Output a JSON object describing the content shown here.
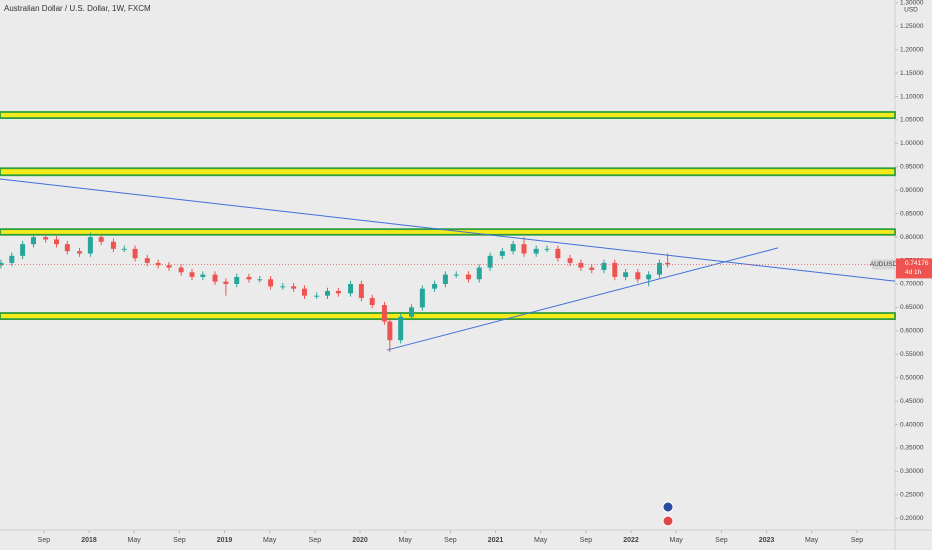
{
  "chart_data": {
    "type": "candlestick",
    "title": "Australian Dollar / U.S. Dollar, 1W, FXCM",
    "currency": "USD",
    "symbol": "AUDUSD",
    "last_price": 0.74176,
    "countdown": "4d 1h",
    "up_color": "#26a69a",
    "down_color": "#ef5350",
    "x": [
      2017.35,
      2017.43,
      2017.51,
      2017.59,
      2017.68,
      2017.76,
      2017.84,
      2017.93,
      2018.01,
      2018.09,
      2018.18,
      2018.26,
      2018.34,
      2018.43,
      2018.51,
      2018.59,
      2018.68,
      2018.76,
      2018.84,
      2018.93,
      2019.01,
      2019.09,
      2019.18,
      2019.26,
      2019.34,
      2019.43,
      2019.51,
      2019.59,
      2019.68,
      2019.76,
      2019.84,
      2019.93,
      2020.01,
      2020.09,
      2020.18,
      2020.22,
      2020.3,
      2020.38,
      2020.46,
      2020.55,
      2020.63,
      2020.71,
      2020.8,
      2020.88,
      2020.96,
      2021.05,
      2021.13,
      2021.21,
      2021.3,
      2021.38,
      2021.46,
      2021.55,
      2021.63,
      2021.71,
      2021.8,
      2021.88,
      2021.96,
      2022.05,
      2022.13,
      2022.21,
      2022.27
    ],
    "open": [
      0.74,
      0.745,
      0.76,
      0.785,
      0.8,
      0.795,
      0.785,
      0.77,
      0.765,
      0.8,
      0.79,
      0.775,
      0.775,
      0.755,
      0.745,
      0.74,
      0.735,
      0.725,
      0.715,
      0.72,
      0.705,
      0.7,
      0.715,
      0.71,
      0.71,
      0.695,
      0.695,
      0.69,
      0.675,
      0.675,
      0.685,
      0.68,
      0.7,
      0.67,
      0.655,
      0.62,
      0.58,
      0.63,
      0.65,
      0.69,
      0.7,
      0.72,
      0.72,
      0.71,
      0.735,
      0.76,
      0.77,
      0.785,
      0.765,
      0.775,
      0.775,
      0.755,
      0.745,
      0.735,
      0.73,
      0.745,
      0.715,
      0.725,
      0.71,
      0.72,
      0.745
    ],
    "high": [
      0.752,
      0.767,
      0.792,
      0.807,
      0.807,
      0.802,
      0.792,
      0.777,
      0.81,
      0.807,
      0.797,
      0.782,
      0.782,
      0.762,
      0.752,
      0.747,
      0.742,
      0.732,
      0.727,
      0.727,
      0.712,
      0.722,
      0.722,
      0.717,
      0.717,
      0.702,
      0.702,
      0.697,
      0.682,
      0.692,
      0.692,
      0.707,
      0.707,
      0.677,
      0.662,
      0.627,
      0.637,
      0.657,
      0.697,
      0.707,
      0.727,
      0.727,
      0.727,
      0.742,
      0.767,
      0.777,
      0.792,
      0.8,
      0.782,
      0.782,
      0.782,
      0.762,
      0.752,
      0.742,
      0.752,
      0.752,
      0.732,
      0.732,
      0.727,
      0.752,
      0.765
    ],
    "low": [
      0.733,
      0.738,
      0.753,
      0.778,
      0.788,
      0.778,
      0.763,
      0.758,
      0.758,
      0.783,
      0.768,
      0.768,
      0.748,
      0.738,
      0.733,
      0.728,
      0.718,
      0.708,
      0.708,
      0.698,
      0.675,
      0.693,
      0.703,
      0.703,
      0.688,
      0.688,
      0.683,
      0.668,
      0.668,
      0.668,
      0.673,
      0.673,
      0.663,
      0.648,
      0.613,
      0.555,
      0.573,
      0.623,
      0.643,
      0.683,
      0.693,
      0.713,
      0.703,
      0.703,
      0.728,
      0.753,
      0.763,
      0.758,
      0.758,
      0.768,
      0.748,
      0.738,
      0.728,
      0.723,
      0.723,
      0.708,
      0.708,
      0.703,
      0.695,
      0.713,
      0.735
    ],
    "close": [
      0.745,
      0.76,
      0.785,
      0.8,
      0.795,
      0.785,
      0.77,
      0.765,
      0.8,
      0.79,
      0.775,
      0.775,
      0.755,
      0.745,
      0.74,
      0.735,
      0.725,
      0.715,
      0.72,
      0.705,
      0.7,
      0.715,
      0.71,
      0.71,
      0.695,
      0.695,
      0.69,
      0.675,
      0.675,
      0.685,
      0.68,
      0.7,
      0.67,
      0.655,
      0.62,
      0.58,
      0.63,
      0.65,
      0.69,
      0.7,
      0.72,
      0.72,
      0.71,
      0.735,
      0.76,
      0.77,
      0.785,
      0.765,
      0.775,
      0.775,
      0.755,
      0.745,
      0.735,
      0.73,
      0.745,
      0.715,
      0.725,
      0.71,
      0.72,
      0.745,
      0.742
    ],
    "xlim": [
      2017.343,
      2023.948
    ],
    "ylim": [
      0.175,
      1.306
    ],
    "xticks": [
      {
        "value": 2017.667,
        "label": "Sep"
      },
      2018,
      {
        "value": 2018.333,
        "label": "May"
      },
      {
        "value": 2018.667,
        "label": "Sep"
      },
      2019,
      {
        "value": 2019.333,
        "label": "May"
      },
      {
        "value": 2019.667,
        "label": "Sep"
      },
      2020,
      {
        "value": 2020.333,
        "label": "May"
      },
      {
        "value": 2020.667,
        "label": "Sep"
      },
      2021,
      {
        "value": 2021.333,
        "label": "May"
      },
      {
        "value": 2021.667,
        "label": "Sep"
      },
      2022,
      {
        "value": 2022.333,
        "label": "May"
      },
      {
        "value": 2022.667,
        "label": "Sep"
      },
      2023,
      {
        "value": 2023.333,
        "label": "May"
      },
      {
        "value": 2023.667,
        "label": "Sep"
      }
    ],
    "yticks": [
      {
        "value": 0.2,
        "label": "0.20000"
      },
      {
        "value": 0.25,
        "label": "0.25000"
      },
      {
        "value": 0.3,
        "label": "0.30000"
      },
      {
        "value": 0.35,
        "label": "0.35000"
      },
      {
        "value": 0.4,
        "label": "0.40000"
      },
      {
        "value": 0.45,
        "label": "0.45000"
      },
      {
        "value": 0.5,
        "label": "0.50000"
      },
      {
        "value": 0.55,
        "label": "0.55000"
      },
      {
        "value": 0.6,
        "label": "0.60000"
      },
      {
        "value": 0.65,
        "label": "0.65000"
      },
      {
        "value": 0.7,
        "label": "0.70000"
      },
      {
        "value": 0.75,
        "label": "0.75000"
      },
      {
        "value": 0.8,
        "label": "0.80000"
      },
      {
        "value": 0.85,
        "label": "0.85000"
      },
      {
        "value": 0.9,
        "label": "0.90000"
      },
      {
        "value": 0.95,
        "label": "0.95000"
      },
      {
        "value": 1.0,
        "label": "1.00000"
      },
      {
        "value": 1.05,
        "label": "1.05000"
      },
      {
        "value": 1.1,
        "label": "1.10000"
      },
      {
        "value": 1.15,
        "label": "1.15000"
      },
      {
        "value": 1.2,
        "label": "1.20000"
      },
      {
        "value": 1.25,
        "label": "1.25000"
      },
      {
        "value": 1.3,
        "label": "1.30000"
      }
    ],
    "zones": [
      {
        "low": 1.054,
        "high": 1.067
      },
      {
        "low": 0.932,
        "high": 0.947
      },
      {
        "low": 0.805,
        "high": 0.817
      },
      {
        "low": 0.625,
        "high": 0.638
      }
    ],
    "zone_fill": "#f5ea1a",
    "zone_border": "#2e9e3c",
    "trend_lines": [
      {
        "x": [
          2017.343,
          2023.948
        ],
        "y": [
          0.924,
          0.706
        ]
      },
      {
        "x": [
          2020.2,
          2023.085
        ],
        "y": [
          0.559,
          0.777
        ]
      }
    ],
    "trend_color": "#3f6fd8"
  }
}
